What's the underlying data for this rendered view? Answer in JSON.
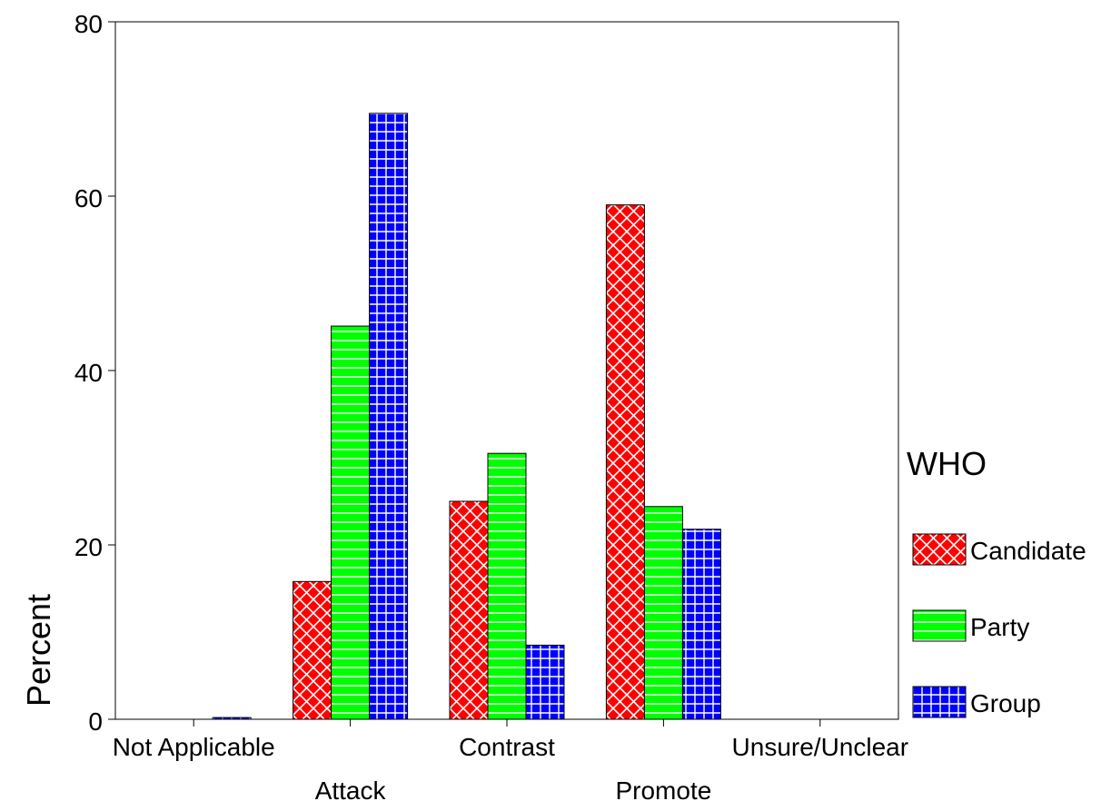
{
  "chart_data": {
    "type": "bar",
    "title": "",
    "xlabel": "",
    "ylabel": "Percent",
    "ylim": [
      0,
      80
    ],
    "yticks": [
      0,
      20,
      40,
      60,
      80
    ],
    "grid": false,
    "categories": [
      "Not Applicable",
      "Attack",
      "Contrast",
      "Promote",
      "Unsure/Unclear"
    ],
    "legend": {
      "title": "WHO",
      "position": "right"
    },
    "series": [
      {
        "name": "Candidate",
        "color": "#ff0000",
        "pattern": "diagonal-crosshatch",
        "values": [
          0,
          15.8,
          25.0,
          59.0,
          0
        ]
      },
      {
        "name": "Party",
        "color": "#00ff00",
        "pattern": "horizontal-lines",
        "values": [
          0,
          45.1,
          30.5,
          24.4,
          0
        ]
      },
      {
        "name": "Group",
        "color": "#0000ff",
        "pattern": "grid",
        "values": [
          0.2,
          69.5,
          8.5,
          21.8,
          0
        ]
      }
    ]
  }
}
